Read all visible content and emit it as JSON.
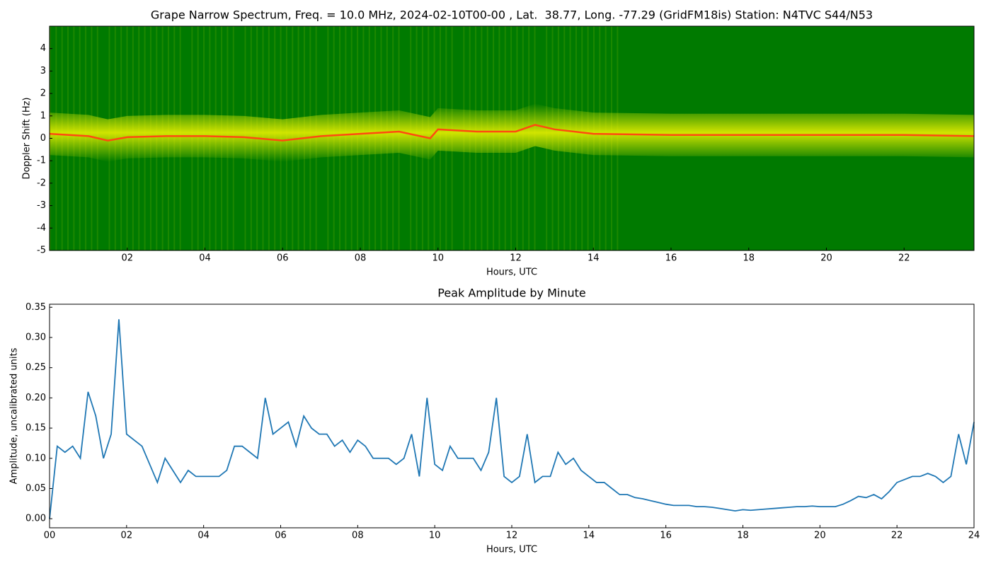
{
  "chart_data": [
    {
      "type": "spectrogram",
      "title": "Grape Narrow Spectrum, Freq. = 10.0 MHz, 2024-02-10T00-00 , Lat.  38.77, Long. -77.29 (GridFM18is) Station: N4TVC S44/N53",
      "x_label": "Hours, UTC",
      "y_label": "Doppler Shift (Hz)",
      "xlim": [
        0,
        23.8
      ],
      "ylim": [
        -5,
        5
      ],
      "xticks": [
        {
          "value": 2,
          "label": "02"
        },
        {
          "value": 4,
          "label": "04"
        },
        {
          "value": 6,
          "label": "06"
        },
        {
          "value": 8,
          "label": "08"
        },
        {
          "value": 10,
          "label": "10"
        },
        {
          "value": 12,
          "label": "12"
        },
        {
          "value": 14,
          "label": "14"
        },
        {
          "value": 16,
          "label": "16"
        },
        {
          "value": 18,
          "label": "18"
        },
        {
          "value": 20,
          "label": "20"
        },
        {
          "value": 22,
          "label": "22"
        }
      ],
      "yticks": [
        -5,
        -4,
        -3,
        -2,
        -1,
        0,
        1,
        2,
        3,
        4
      ],
      "background_color": "#007a00",
      "band_color": "#e8f000",
      "color": "#ff4a10",
      "x": [
        0,
        1,
        1.5,
        2,
        3,
        4,
        5,
        6,
        7,
        8,
        9,
        9.8,
        10,
        11,
        12,
        12.5,
        13,
        14,
        16,
        18,
        20,
        22,
        23.8
      ],
      "values": [
        0.2,
        0.1,
        -0.1,
        0.05,
        0.1,
        0.1,
        0.05,
        -0.1,
        0.1,
        0.2,
        0.3,
        0.0,
        0.4,
        0.3,
        0.3,
        0.6,
        0.4,
        0.2,
        0.15,
        0.15,
        0.15,
        0.15,
        0.1
      ]
    },
    {
      "type": "line",
      "title": "Peak Amplitude by Minute",
      "x_label": "Hours, UTC",
      "y_label": "Amplitude, uncalibrated units",
      "xlim": [
        0,
        24
      ],
      "ylim": [
        -0.015,
        0.355
      ],
      "xticks": [
        {
          "value": 0,
          "label": "00"
        },
        {
          "value": 2,
          "label": "02"
        },
        {
          "value": 4,
          "label": "04"
        },
        {
          "value": 6,
          "label": "06"
        },
        {
          "value": 8,
          "label": "08"
        },
        {
          "value": 10,
          "label": "10"
        },
        {
          "value": 12,
          "label": "12"
        },
        {
          "value": 14,
          "label": "14"
        },
        {
          "value": 16,
          "label": "16"
        },
        {
          "value": 18,
          "label": "18"
        },
        {
          "value": 20,
          "label": "20"
        },
        {
          "value": 22,
          "label": "22"
        },
        {
          "value": 24,
          "label": "24"
        }
      ],
      "yticks": [
        {
          "value": 0,
          "label": "0.00"
        },
        0.05,
        {
          "value": 0.1,
          "label": "0.10"
        },
        0.15,
        {
          "value": 0.2,
          "label": "0.20"
        },
        0.25,
        {
          "value": 0.3,
          "label": "0.30"
        },
        0.35
      ],
      "color": "#1f77b4",
      "x": [
        0,
        0.2,
        0.4,
        0.6,
        0.8,
        1,
        1.2,
        1.4,
        1.6,
        1.8,
        2,
        2.2,
        2.4,
        2.6,
        2.8,
        3,
        3.2,
        3.4,
        3.6,
        3.8,
        4,
        4.2,
        4.4,
        4.6,
        4.8,
        5,
        5.2,
        5.4,
        5.6,
        5.8,
        6,
        6.2,
        6.4,
        6.6,
        6.8,
        7,
        7.2,
        7.4,
        7.6,
        7.8,
        8,
        8.2,
        8.4,
        8.6,
        8.8,
        9,
        9.2,
        9.4,
        9.6,
        9.8,
        10,
        10.2,
        10.4,
        10.6,
        10.8,
        11,
        11.2,
        11.4,
        11.6,
        11.8,
        12,
        12.2,
        12.4,
        12.6,
        12.8,
        13,
        13.2,
        13.4,
        13.6,
        13.8,
        14,
        14.2,
        14.4,
        14.6,
        14.8,
        15,
        15.2,
        15.4,
        15.6,
        15.8,
        16,
        16.2,
        16.4,
        16.6,
        16.8,
        17,
        17.2,
        17.4,
        17.6,
        17.8,
        18,
        18.2,
        18.4,
        18.6,
        18.8,
        19,
        19.2,
        19.4,
        19.6,
        19.8,
        20,
        20.2,
        20.4,
        20.6,
        20.8,
        21,
        21.2,
        21.4,
        21.6,
        21.8,
        22,
        22.2,
        22.4,
        22.6,
        22.8,
        23,
        23.2,
        23.4,
        23.6,
        23.8,
        24
      ],
      "values": [
        0.0,
        0.12,
        0.11,
        0.12,
        0.1,
        0.21,
        0.17,
        0.1,
        0.14,
        0.33,
        0.14,
        0.13,
        0.12,
        0.09,
        0.06,
        0.1,
        0.08,
        0.06,
        0.08,
        0.07,
        0.07,
        0.07,
        0.07,
        0.08,
        0.12,
        0.12,
        0.11,
        0.1,
        0.2,
        0.14,
        0.15,
        0.16,
        0.12,
        0.17,
        0.15,
        0.14,
        0.14,
        0.12,
        0.13,
        0.11,
        0.13,
        0.12,
        0.1,
        0.1,
        0.1,
        0.09,
        0.1,
        0.14,
        0.07,
        0.2,
        0.09,
        0.08,
        0.12,
        0.1,
        0.1,
        0.1,
        0.08,
        0.11,
        0.2,
        0.07,
        0.06,
        0.07,
        0.14,
        0.06,
        0.07,
        0.07,
        0.11,
        0.09,
        0.1,
        0.08,
        0.07,
        0.06,
        0.06,
        0.05,
        0.04,
        0.04,
        0.035,
        0.033,
        0.03,
        0.027,
        0.024,
        0.022,
        0.022,
        0.022,
        0.02,
        0.02,
        0.019,
        0.017,
        0.015,
        0.013,
        0.015,
        0.014,
        0.015,
        0.016,
        0.017,
        0.018,
        0.019,
        0.02,
        0.02,
        0.021,
        0.02,
        0.02,
        0.02,
        0.024,
        0.03,
        0.037,
        0.035,
        0.04,
        0.033,
        0.045,
        0.06,
        0.065,
        0.07,
        0.07,
        0.075,
        0.07,
        0.06,
        0.07,
        0.14,
        0.09,
        0.16
      ]
    }
  ]
}
